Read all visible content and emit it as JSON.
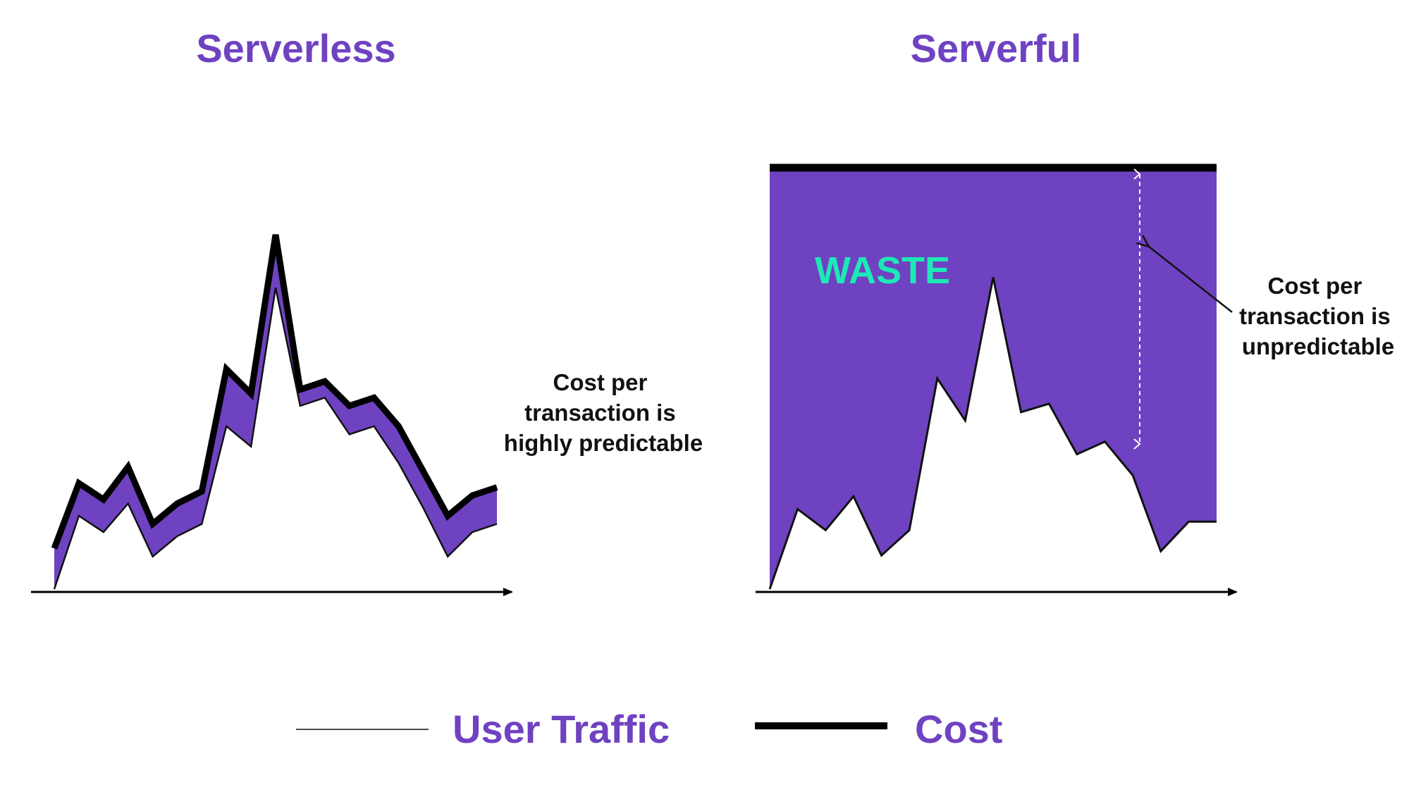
{
  "colors": {
    "accent": "#6f42c1",
    "waste_text": "#1de9b6",
    "cost_line": "#000000",
    "traffic_line": "#111111",
    "background": "#ffffff"
  },
  "panels": [
    {
      "title": "Serverless",
      "annotation_lines": [
        "Cost per",
        "transaction is",
        "highly predictable"
      ]
    },
    {
      "title": "Serverful",
      "waste_label": "WASTE",
      "annotation_lines": [
        "Cost per",
        "transaction is",
        "unpredictable"
      ]
    }
  ],
  "legend": {
    "traffic_label": "User Traffic",
    "cost_label": "Cost"
  },
  "chart_data": [
    {
      "type": "line",
      "title": "Serverless",
      "series": [
        {
          "name": "User Traffic",
          "x": [
            0,
            1,
            2,
            3,
            4,
            5,
            6,
            7,
            8,
            9,
            10,
            11,
            12,
            13,
            14,
            15,
            16,
            17,
            18
          ],
          "values": [
            0,
            18,
            14,
            21,
            8,
            13,
            16,
            40,
            35,
            74,
            45,
            47,
            38,
            40,
            31,
            20,
            8,
            14,
            16
          ]
        },
        {
          "name": "Cost",
          "x": [
            0,
            1,
            2,
            3,
            4,
            5,
            6,
            7,
            8,
            9,
            10,
            11,
            12,
            13,
            14,
            15,
            16,
            17,
            18
          ],
          "values": [
            10,
            26,
            22,
            30,
            16,
            21,
            24,
            54,
            48,
            87,
            49,
            51,
            45,
            47,
            40,
            29,
            18,
            23,
            25
          ]
        }
      ]
    },
    {
      "type": "area",
      "title": "Serverful",
      "series": [
        {
          "name": "User Traffic",
          "x": [
            0,
            1,
            2,
            3,
            4,
            5,
            6,
            7,
            8,
            9,
            10,
            11,
            12,
            13,
            14,
            15,
            16
          ],
          "values": [
            0,
            19,
            14,
            22,
            8,
            14,
            50,
            40,
            74,
            42,
            44,
            32,
            35,
            27,
            9,
            16,
            16
          ]
        },
        {
          "name": "Cost",
          "x": [
            0,
            16
          ],
          "values": [
            100,
            100
          ]
        }
      ]
    }
  ]
}
